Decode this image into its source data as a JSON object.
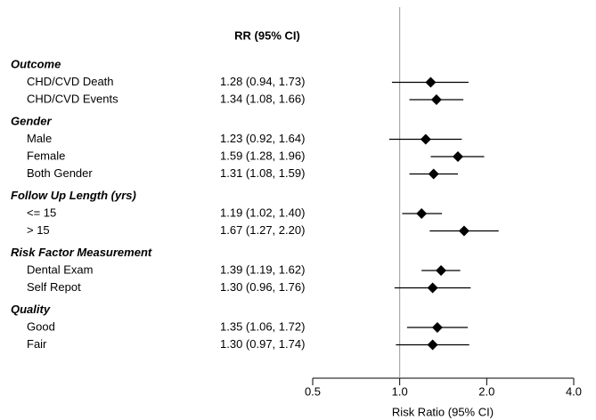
{
  "chart_data": {
    "type": "forest",
    "column_header": "RR (95% CI)",
    "x_label": "Risk Ratio (95% CI)",
    "xscale": "log",
    "xlim": [
      0.5,
      4
    ],
    "xticks": [
      0.5,
      {
        "value": 1,
        "label": "1.0"
      },
      {
        "value": 2,
        "label": "2.0"
      },
      {
        "value": 4,
        "label": "4.0"
      }
    ],
    "reference_line": 1,
    "color": "#000000",
    "groups": [
      {
        "name": "Outcome",
        "items": [
          {
            "name": "CHD/CVD Death",
            "value": 1.28,
            "lower": 0.94,
            "upper": 1.73,
            "value_label": "1.28 (0.94, 1.73)"
          },
          {
            "name": "CHD/CVD Events",
            "value": 1.34,
            "lower": 1.08,
            "upper": 1.66,
            "value_label": "1.34 (1.08, 1.66)"
          }
        ]
      },
      {
        "name": "Gender",
        "items": [
          {
            "name": "Male",
            "value": 1.23,
            "lower": 0.92,
            "upper": 1.64,
            "value_label": "1.23 (0.92, 1.64)"
          },
          {
            "name": "Female",
            "value": 1.59,
            "lower": 1.28,
            "upper": 1.96,
            "value_label": "1.59 (1.28, 1.96)"
          },
          {
            "name": "Both Gender",
            "value": 1.31,
            "lower": 1.08,
            "upper": 1.59,
            "value_label": "1.31 (1.08, 1.59)"
          }
        ]
      },
      {
        "name": "Follow Up Length (yrs)",
        "items": [
          {
            "name": "<= 15",
            "value": 1.19,
            "lower": 1.02,
            "upper": 1.4,
            "value_label": "1.19 (1.02, 1.40)"
          },
          {
            "name": "> 15",
            "value": 1.67,
            "lower": 1.27,
            "upper": 2.2,
            "value_label": "1.67 (1.27, 2.20)"
          }
        ]
      },
      {
        "name": "Risk Factor Measurement",
        "items": [
          {
            "name": "Dental Exam",
            "value": 1.39,
            "lower": 1.19,
            "upper": 1.62,
            "value_label": "1.39 (1.19, 1.62)"
          },
          {
            "name": "Self Repot",
            "value": 1.3,
            "lower": 0.96,
            "upper": 1.76,
            "value_label": "1.30 (0.96, 1.76)"
          }
        ]
      },
      {
        "name": "Quality",
        "items": [
          {
            "name": "Good",
            "value": 1.35,
            "lower": 1.06,
            "upper": 1.72,
            "value_label": "1.35 (1.06, 1.72)"
          },
          {
            "name": "Fair",
            "value": 1.3,
            "lower": 0.97,
            "upper": 1.74,
            "value_label": "1.30 (0.97, 1.74)"
          }
        ]
      }
    ]
  }
}
